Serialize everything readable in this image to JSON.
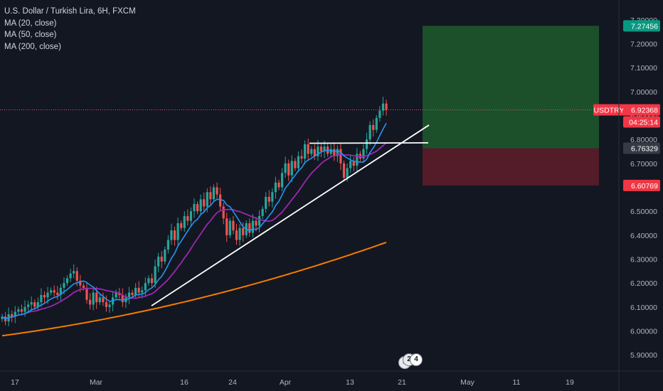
{
  "legend": {
    "title": "U.S. Dollar / Turkish Lira, 6H, FXCM",
    "ma20": "MA (20, close)",
    "ma50": "MA (50, close)",
    "ma200": "MA (200, close)"
  },
  "price_axis": {
    "ticks": [
      "5.90000",
      "6.00000",
      "6.10000",
      "6.20000",
      "6.30000",
      "6.40000",
      "6.50000",
      "6.70000",
      "6.80000",
      "6.90000",
      "7.00000",
      "7.10000",
      "7.20000",
      "7.30000"
    ],
    "tag_target": "7.27456",
    "tag_symbol": "USDTRY",
    "tag_price": "6.92368",
    "tag_countdown": "04:25:14",
    "tag_entry": "6.76329",
    "tag_stop": "6.60769"
  },
  "time_axis": {
    "labels": [
      "17",
      "Mar",
      "16",
      "24",
      "Apr",
      "13",
      "21",
      "May",
      "11",
      "19"
    ]
  },
  "events": {
    "badge_a": "2",
    "badge_b": "4"
  },
  "colors": {
    "background": "#131722",
    "up": "#26a69a",
    "down": "#ef5350",
    "ma20": "#2196f3",
    "ma50": "#9c27b0",
    "ma200": "#f57c00",
    "trendline": "#ffffff",
    "profit_zone": "#1e5a2b",
    "loss_zone": "#5c1c2a",
    "tag_green": "#089981",
    "tag_red": "#f23645"
  },
  "chart_data": {
    "type": "candlestick",
    "symbol": "USDTRY",
    "title": "U.S. Dollar / Turkish Lira, 6H, FXCM",
    "timeframe": "6H",
    "x_labels": [
      "17",
      "Mar",
      "16",
      "24",
      "Apr",
      "13",
      "21",
      "May",
      "11",
      "19"
    ],
    "ylim": [
      5.86,
      7.33
    ],
    "current_price": 6.92368,
    "close_series": [
      6.06,
      6.04,
      6.07,
      6.06,
      6.08,
      6.09,
      6.08,
      6.1,
      6.11,
      6.12,
      6.1,
      6.12,
      6.15,
      6.14,
      6.16,
      6.17,
      6.16,
      6.15,
      6.18,
      6.2,
      6.22,
      6.24,
      6.25,
      6.21,
      6.19,
      6.18,
      6.13,
      6.11,
      6.16,
      6.12,
      6.14,
      6.12,
      6.1,
      6.11,
      6.14,
      6.16,
      6.15,
      6.12,
      6.14,
      6.16,
      6.15,
      6.18,
      6.16,
      6.17,
      6.2,
      6.22,
      6.2,
      6.27,
      6.31,
      6.29,
      6.34,
      6.38,
      6.42,
      6.38,
      6.45,
      6.43,
      6.48,
      6.46,
      6.5,
      6.53,
      6.5,
      6.55,
      6.52,
      6.58,
      6.55,
      6.6,
      6.57,
      6.52,
      6.47,
      6.4,
      6.46,
      6.42,
      6.38,
      6.43,
      6.4,
      6.45,
      6.41,
      6.46,
      6.44,
      6.48,
      6.51,
      6.56,
      6.54,
      6.58,
      6.62,
      6.6,
      6.66,
      6.7,
      6.65,
      6.71,
      6.68,
      6.73,
      6.72,
      6.78,
      6.74,
      6.76,
      6.73,
      6.77,
      6.75,
      6.77,
      6.74,
      6.76,
      6.73,
      6.76,
      6.7,
      6.64,
      6.68,
      6.71,
      6.69,
      6.74,
      6.72,
      6.76,
      6.8,
      6.86,
      6.84,
      6.89,
      6.92,
      6.95,
      6.92368
    ],
    "series": [
      {
        "name": "MA (20, close)",
        "start_index": 20,
        "end_value": 6.84
      },
      {
        "name": "MA (50, close)",
        "start_index": 0,
        "end_value": 6.775
      },
      {
        "name": "MA (200, close)",
        "start_index": 0,
        "start_value": 5.98,
        "end_value": 6.37
      }
    ],
    "trendlines": [
      {
        "from": [
          33,
          6.105
        ],
        "to": [
          118,
          6.845
        ],
        "kind": "ascending support"
      },
      {
        "from": [
          89,
          6.784
        ],
        "to": [
          118,
          6.786
        ],
        "kind": "horizontal resistance"
      }
    ],
    "position": {
      "type": "long",
      "entry": 6.76329,
      "target": 7.27456,
      "stop": 6.60769
    },
    "events": [
      "2",
      "4"
    ]
  }
}
